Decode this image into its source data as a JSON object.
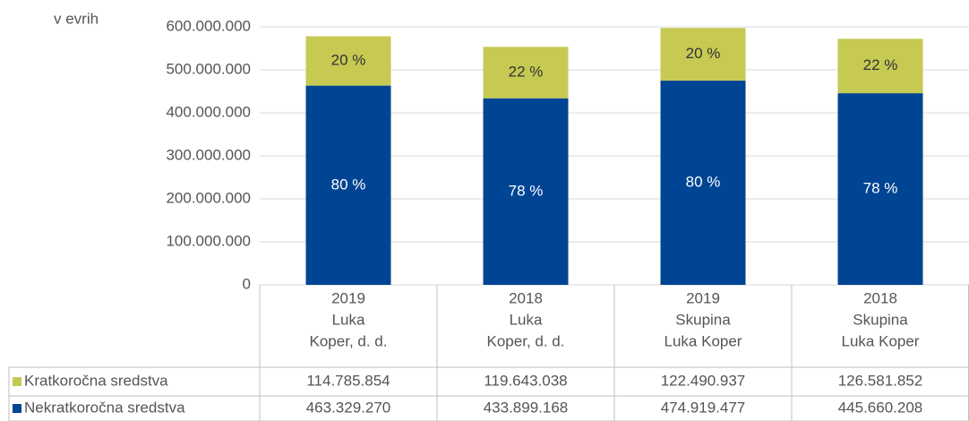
{
  "chart_data": {
    "type": "stacked_bar",
    "y_axis_label": "v evrih",
    "categories": [
      [
        "2019",
        "Luka",
        "Koper, d. d."
      ],
      [
        "2018",
        "Luka",
        "Koper, d. d."
      ],
      [
        "2019",
        "Skupina",
        "Luka Koper"
      ],
      [
        "2018",
        "Skupina",
        "Luka Koper"
      ]
    ],
    "series": [
      {
        "name": "Nekratkoročna sredstva",
        "color": "#004494",
        "values": [
          463329270,
          433899168,
          474919477,
          445660208
        ],
        "value_labels": [
          "80 %",
          "78 %",
          "80 %",
          "78 %"
        ],
        "table_labels": [
          "463.329.270",
          "433.899.168",
          "474.919.477",
          "445.660.208"
        ]
      },
      {
        "name": "Kratkoročna sredstva",
        "color": "#c6ca53",
        "values": [
          114785854,
          119643038,
          122490937,
          126581852
        ],
        "value_labels": [
          "20 %",
          "22 %",
          "20 %",
          "22 %"
        ],
        "table_labels": [
          "114.785.854",
          "119.643.038",
          "122.490.937",
          "126.581.852"
        ]
      }
    ],
    "ylim": [
      0,
      600000000
    ],
    "yticks": [
      0,
      {
        "value": 100000000,
        "label": "100.000.000"
      },
      {
        "value": 200000000,
        "label": "200.000.000"
      },
      {
        "value": 300000000,
        "label": "300.000.000"
      },
      {
        "value": 400000000,
        "label": "400.000.000"
      },
      {
        "value": 500000000,
        "label": "500.000.000"
      },
      {
        "value": 600000000,
        "label": "600.000.000"
      }
    ],
    "grid": true
  }
}
